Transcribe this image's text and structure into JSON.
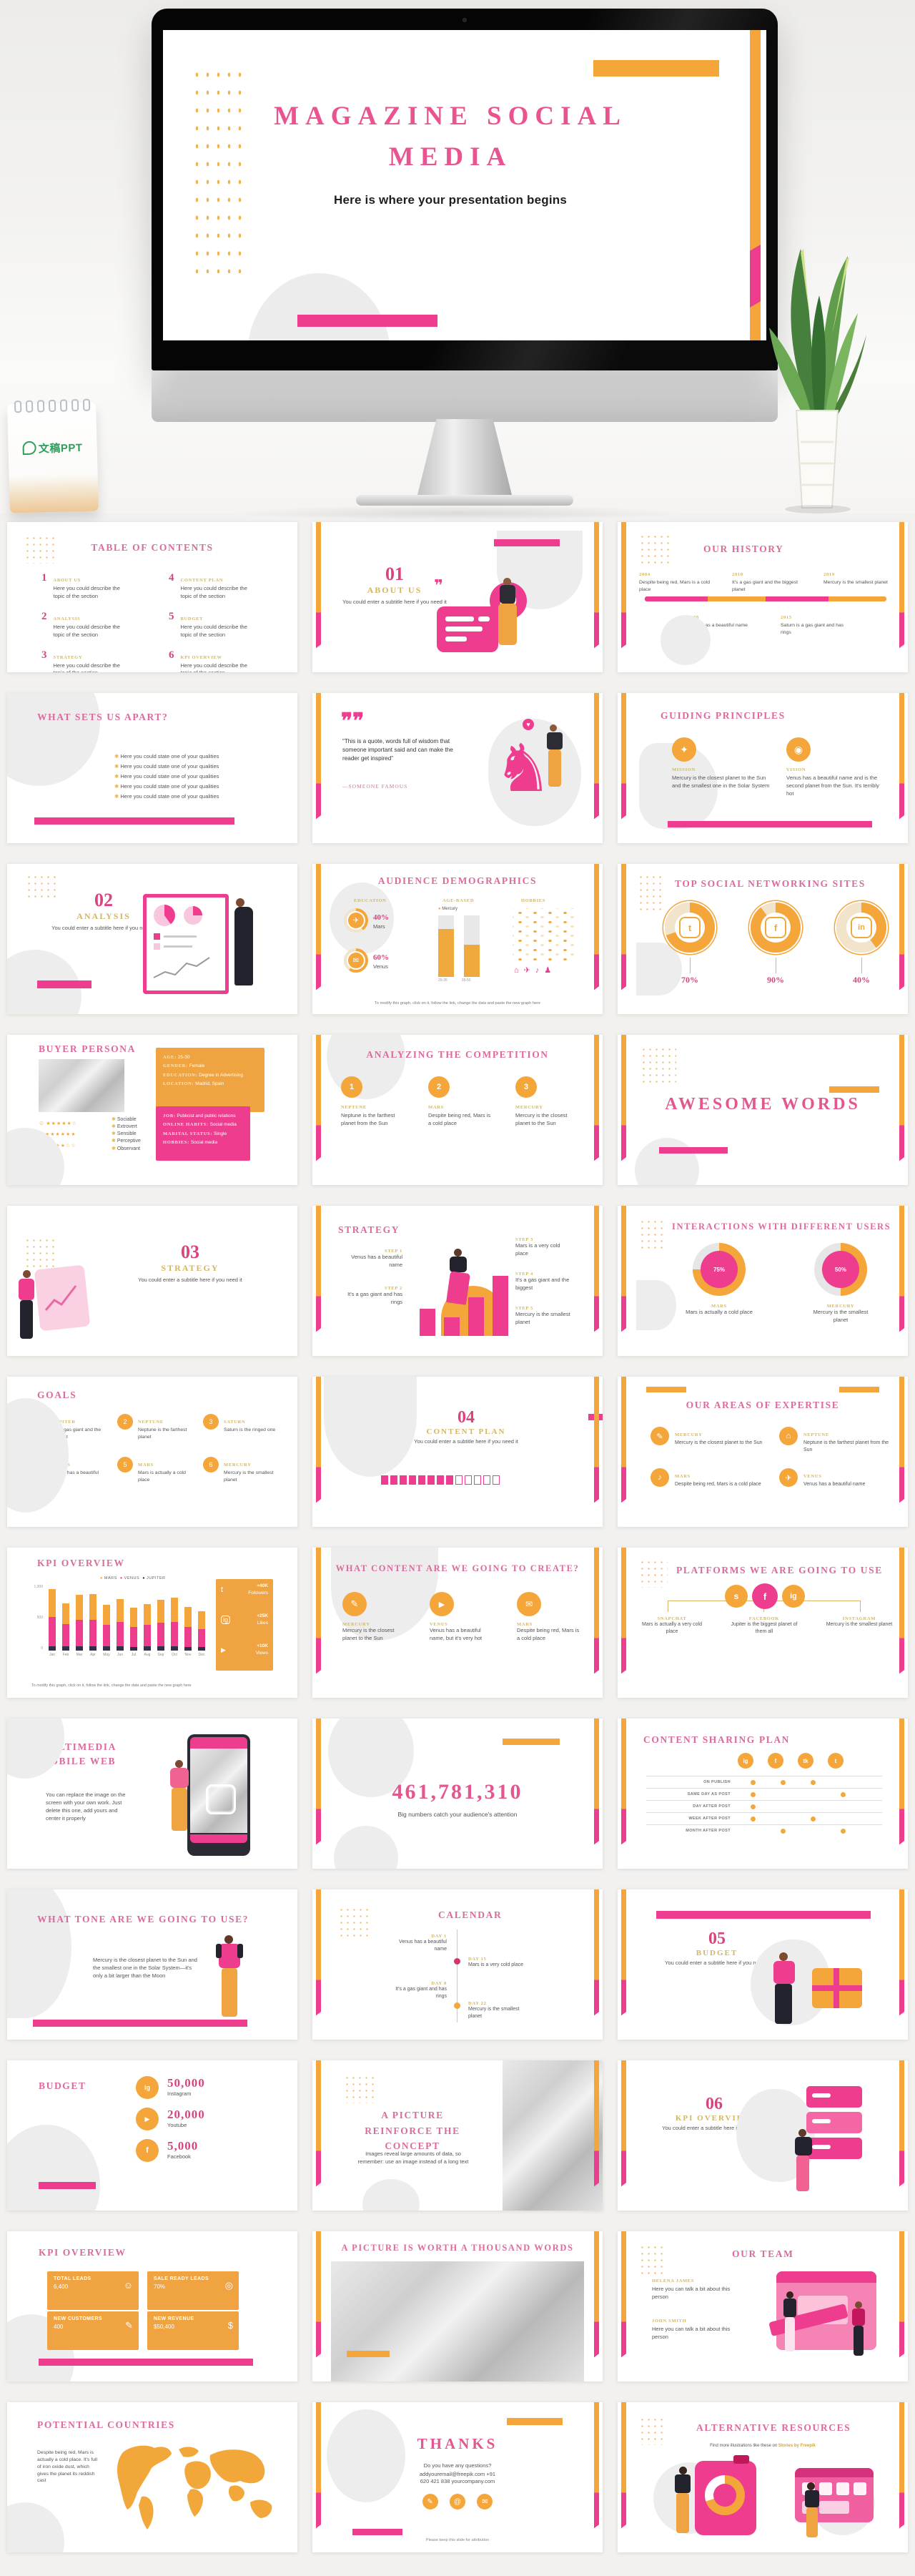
{
  "colors": {
    "pink": "#EE3D8F",
    "orange": "#F4A63A",
    "title_pink": "#DB6A9D",
    "gold": "#D2B660",
    "green_logo": "#2F9E5D"
  },
  "hero": {
    "title_line1": "MAGAZINE SOCIAL",
    "title_line2": "MEDIA",
    "subtitle": "Here is where your presentation begins",
    "calendar_brand": "文稿PPT"
  },
  "slides": {
    "toc": {
      "title": "TABLE OF CONTENTS",
      "desc": "Here you could describe the topic of the section",
      "items": [
        {
          "num": "1",
          "label": "ABOUT US"
        },
        {
          "num": "2",
          "label": "ANALYSIS"
        },
        {
          "num": "3",
          "label": "STRATEGY"
        },
        {
          "num": "4",
          "label": "CONTENT PLAN"
        },
        {
          "num": "5",
          "label": "BUDGET"
        },
        {
          "num": "6",
          "label": "KPI OVERVIEW"
        }
      ]
    },
    "about": {
      "num": "01",
      "title": "ABOUT US",
      "subtitle": "You could enter a subtitle here if you need it"
    },
    "history": {
      "title": "OUR HISTORY",
      "top": [
        {
          "year": "2004",
          "text": "Despite being red, Mars is a cold place"
        },
        {
          "year": "2010",
          "text": "It's a gas giant and the biggest planet"
        },
        {
          "year": "2019",
          "text": "Mercury is the smallest planet"
        }
      ],
      "bottom": [
        {
          "year": "2008",
          "text": "Venus has a beautiful name"
        },
        {
          "year": "2015",
          "text": "Saturn is a gas giant and has rings"
        }
      ]
    },
    "apart": {
      "title": "WHAT SETS US APART?",
      "bullet": "Here you could state one of your qualities"
    },
    "quote": {
      "text": "“This is a quote, words full of wisdom that someone important said and can make the reader get inspired”",
      "author": "—SOMEONE FAMOUS"
    },
    "principles": {
      "title": "GUIDING PRINCIPLES",
      "items": [
        {
          "icon": "compass-icon",
          "label": "MISSION",
          "text": "Mercury is the closest planet to the Sun and the smallest one in the Solar System"
        },
        {
          "icon": "eye-icon",
          "label": "VISION",
          "text": "Venus has a beautiful name and is the second planet from the Sun. It's terribly hot"
        }
      ]
    },
    "analysis": {
      "num": "02",
      "title": "ANALYSIS",
      "subtitle": "You could enter a subtitle here if you need it"
    },
    "demographics": {
      "title": "AUDIENCE DEMOGRAPHICS",
      "education": {
        "label": "EDUCATION",
        "items": [
          {
            "pct": "40%",
            "name": "Mars",
            "value": 40
          },
          {
            "pct": "60%",
            "name": "Venus",
            "value": 60
          }
        ]
      },
      "age": {
        "label": "AGE-BASED",
        "legend": "Mercury",
        "bars": [
          {
            "x": "20-35",
            "v": 78
          },
          {
            "x": "35-50",
            "v": 52
          }
        ]
      },
      "hobbies": {
        "label": "HOBBIES"
      },
      "note": "To modify this graph, click on it, follow the link, change the data and paste the new graph here"
    },
    "topsites": {
      "title": "TOP SOCIAL NETWORKING SITES",
      "items": [
        {
          "icon": "twitter-icon",
          "glyph": "t",
          "pct": "70%",
          "value": 70
        },
        {
          "icon": "facebook-icon",
          "glyph": "f",
          "pct": "90%",
          "value": 90
        },
        {
          "icon": "linkedin-icon",
          "glyph": "in",
          "pct": "40%",
          "value": 40
        }
      ]
    },
    "persona": {
      "title": "BUYER PERSONA",
      "traits": [
        "Sociable",
        "Extrovert",
        "Sensible",
        "Perceptive",
        "Observant"
      ],
      "info": [
        {
          "k": "AGE:",
          "v": "25-30"
        },
        {
          "k": "GENDER:",
          "v": "Female"
        },
        {
          "k": "EDUCATION:",
          "v": "Degree in Advertising"
        },
        {
          "k": "LOCATION:",
          "v": "Madrid, Spain"
        }
      ],
      "details": [
        {
          "k": "JOB:",
          "v": "Publicist and public relations"
        },
        {
          "k": "ONLINE HABITS:",
          "v": "Social media"
        },
        {
          "k": "MARITAL STATUS:",
          "v": "Single"
        },
        {
          "k": "HOBBIES:",
          "v": "Social media"
        }
      ]
    },
    "competition": {
      "title": "ANALYZING THE COMPETITION",
      "items": [
        {
          "num": "1",
          "label": "NEPTUNE",
          "text": "Neptune is the farthest planet from the Sun"
        },
        {
          "num": "2",
          "label": "MARS",
          "text": "Despite being red, Mars is a cold place"
        },
        {
          "num": "3",
          "label": "MERCURY",
          "text": "Mercury is the closest planet to the Sun"
        }
      ]
    },
    "awesome": {
      "title": "AWESOME WORDS"
    },
    "strategy_intro": {
      "num": "03",
      "title": "STRATEGY",
      "subtitle": "You could enter a subtitle here if you need it"
    },
    "strategy": {
      "title": "STRATEGY",
      "steps": [
        {
          "label": "STEP 1",
          "text": "Venus has a beautiful name"
        },
        {
          "label": "STEP 2",
          "text": "It's a gas giant and has rings"
        },
        {
          "label": "STEP 3",
          "text": "Mars is a very cold place"
        },
        {
          "label": "STEP 4",
          "text": "It's a gas giant and the biggest"
        },
        {
          "label": "STEP 5",
          "text": "Mercury is the smallest planet"
        }
      ]
    },
    "interactions": {
      "title": "INTERACTIONS WITH DIFFERENT USERS",
      "items": [
        {
          "pct": "75%",
          "value": 75,
          "label": "MARS",
          "text": "Mars is actually a cold place"
        },
        {
          "pct": "50%",
          "value": 50,
          "label": "MERCURY",
          "text": "Mercury is the smallest planet"
        }
      ]
    },
    "goals": {
      "title": "GOALS",
      "items": [
        {
          "num": "1",
          "label": "JUPITER",
          "text": "It's a gas giant and the biggest"
        },
        {
          "num": "2",
          "label": "NEPTUNE",
          "text": "Neptune is the farthest planet"
        },
        {
          "num": "3",
          "label": "SATURN",
          "text": "Saturn is the ringed one"
        },
        {
          "num": "4",
          "label": "VENUS",
          "text": "Venus has a beautiful name"
        },
        {
          "num": "5",
          "label": "MARS",
          "text": "Mars is actually a cold place"
        },
        {
          "num": "6",
          "label": "MERCURY",
          "text": "Mercury is the smallest planet"
        }
      ]
    },
    "contentplan": {
      "num": "04",
      "title": "CONTENT PLAN",
      "subtitle": "You could enter a subtitle here if you need it",
      "progress": {
        "filled": 8,
        "total": 13
      }
    },
    "expertise": {
      "title": "OUR AREAS OF EXPERTISE",
      "items": [
        {
          "icon": "chart-icon",
          "glyph": "✎",
          "label": "MERCURY",
          "text": "Mercury is the closest planet to the Sun"
        },
        {
          "icon": "bank-icon",
          "glyph": "⌂",
          "label": "NEPTUNE",
          "text": "Neptune is the farthest planet from the Sun"
        },
        {
          "icon": "megaphone-icon",
          "glyph": "♪",
          "label": "MARS",
          "text": "Despite being red, Mars is a cold place"
        },
        {
          "icon": "pen-icon",
          "glyph": "✈",
          "label": "VENUS",
          "text": "Venus has a beautiful name"
        }
      ]
    },
    "kpi_chart": {
      "title": "KPI OVERVIEW",
      "legend": [
        "MARS",
        "VENUS",
        "JUPITER"
      ],
      "months": [
        "Jan",
        "Feb",
        "Mar",
        "Apr",
        "May",
        "Jun",
        "Jul",
        "Aug",
        "Sep",
        "Oct",
        "Nov",
        "Dec"
      ],
      "yticks": [
        "1,000",
        "500",
        "0"
      ],
      "series": {
        "mars": [
          420,
          320,
          380,
          390,
          310,
          350,
          290,
          320,
          350,
          360,
          300,
          270
        ],
        "venus": [
          440,
          340,
          400,
          400,
          330,
          370,
          310,
          330,
          360,
          380,
          310,
          280
        ],
        "jupiter": [
          70,
          60,
          70,
          70,
          60,
          60,
          50,
          60,
          60,
          60,
          50,
          50
        ]
      },
      "stats": [
        {
          "icon": "twitter-icon",
          "glyph": "t",
          "value": "+40K",
          "label": "Followers"
        },
        {
          "icon": "instagram-icon",
          "glyph": "ig",
          "value": "+25K",
          "label": "Likes"
        },
        {
          "icon": "youtube-icon",
          "glyph": "▶",
          "value": "+10K",
          "label": "Views"
        }
      ],
      "note": "To modify this graph, click on it, follow the link, change the data and paste the new graph here"
    },
    "whatcontent": {
      "title": "WHAT CONTENT ARE WE GOING TO CREATE?",
      "items": [
        {
          "icon": "image-icon",
          "glyph": "✎",
          "label": "MERCURY",
          "text": "Mercury is the closest planet to the Sun"
        },
        {
          "icon": "video-icon",
          "glyph": "▶",
          "label": "VENUS",
          "text": "Venus has a beautiful name, but it's very hot"
        },
        {
          "icon": "doc-icon",
          "glyph": "✉",
          "label": "MARS",
          "text": "Despite being red, Mars is a cold place"
        }
      ]
    },
    "platforms": {
      "title": "PLATFORMS WE ARE GOING TO USE",
      "items": [
        {
          "icon": "snapchat-icon",
          "glyph": "s",
          "label": "SNAPCHAT",
          "text": "Mars is actually a very cold place"
        },
        {
          "icon": "facebook-icon",
          "glyph": "f",
          "label": "FACEBOOK",
          "text": "Jupiter is the biggest planet of them all"
        },
        {
          "icon": "instagram-icon",
          "glyph": "ig",
          "label": "INSTAGRAM",
          "text": "Mercury is the smallest planet"
        }
      ]
    },
    "multimedia": {
      "title": "MULTIMEDIA MOBILE WEB",
      "text": "You can replace the image on the screen with your own work. Just delete this one, add yours and center it properly"
    },
    "bignumber": {
      "value": "461,781,310",
      "caption": "Big numbers catch your audience's attention"
    },
    "sharingplan": {
      "title": "CONTENT SHARING PLAN",
      "columns": [
        {
          "icon": "instagram-icon",
          "glyph": "ig"
        },
        {
          "icon": "facebook-icon",
          "glyph": "f"
        },
        {
          "icon": "tiktok-icon",
          "glyph": "tk"
        },
        {
          "icon": "twitter-icon",
          "glyph": "t"
        }
      ],
      "rows": [
        {
          "label": "ON PUBLISH",
          "dots": [
            1,
            1,
            1,
            0
          ]
        },
        {
          "label": "SAME DAY AS POST",
          "dots": [
            1,
            0,
            0,
            1
          ]
        },
        {
          "label": "DAY AFTER POST",
          "dots": [
            1,
            0,
            0,
            0
          ]
        },
        {
          "label": "WEEK AFTER POST",
          "dots": [
            1,
            0,
            1,
            0
          ]
        },
        {
          "label": "MONTH AFTER POST",
          "dots": [
            0,
            1,
            0,
            1
          ]
        }
      ]
    },
    "tone": {
      "title": "WHAT TONE ARE WE GOING TO USE?",
      "text": "Mercury is the closest planet to the Sun and the smallest one in the Solar System—it's only a bit larger than the Moon"
    },
    "calendar": {
      "title": "CALENDAR",
      "items": [
        {
          "label": "DAY 1",
          "text": "Venus has a beautiful name"
        },
        {
          "label": "DAY 8",
          "text": "It's a gas giant and has rings"
        },
        {
          "label": "DAY 15",
          "text": "Mars is a very cold place"
        },
        {
          "label": "DAY 22",
          "text": "Mercury is the smallest planet"
        }
      ]
    },
    "budget_intro": {
      "num": "05",
      "title": "BUDGET",
      "subtitle": "You could enter a subtitle here if you need it"
    },
    "budget": {
      "title": "BUDGET",
      "items": [
        {
          "icon": "instagram-icon",
          "glyph": "ig",
          "value": "50,000",
          "label": "Instagram"
        },
        {
          "icon": "youtube-icon",
          "glyph": "▶",
          "value": "20,000",
          "label": "Youtube"
        },
        {
          "icon": "facebook-icon",
          "glyph": "f",
          "value": "5,000",
          "label": "Facebook"
        }
      ]
    },
    "picture_concept": {
      "title": "A PICTURE REINFORCE THE CONCEPT",
      "text": "Images reveal large amounts of data, so remember: use an image instead of a long text"
    },
    "kpi_intro": {
      "num": "06",
      "title": "KPI OVERVIEW",
      "subtitle": "You could enter a subtitle here if you need it"
    },
    "kpi_boxes": {
      "title": "KPI OVERVIEW",
      "boxes": [
        {
          "icon": "people-icon",
          "glyph": "☺",
          "label": "TOTAL LEADS",
          "value": "6,400"
        },
        {
          "icon": "badge-icon",
          "glyph": "◎",
          "label": "SALE READY LEADS",
          "value": "70%"
        },
        {
          "icon": "contact-icon",
          "glyph": "✎",
          "label": "NEW CUSTOMERS",
          "value": "400"
        },
        {
          "icon": "revenue-icon",
          "glyph": "$",
          "label": "NEW REVENUE",
          "value": "$50,400"
        }
      ]
    },
    "picture_words": {
      "title": "A PICTURE IS WORTH A THOUSAND WORDS"
    },
    "team": {
      "title": "OUR TEAM",
      "members": [
        {
          "name": "HELENA JAMES",
          "text": "Here you can talk a bit about this person"
        },
        {
          "name": "JOHN SMITH",
          "text": "Here you can talk a bit about this person"
        }
      ]
    },
    "countries": {
      "title": "POTENTIAL COUNTRIES",
      "text": "Despite being red, Mars is actually a cold place. It's full of iron oxide dust, which gives the planet its reddish cast"
    },
    "thanks": {
      "title": "THANKS",
      "question": "Do you have any questions?",
      "contact1": "addyouremail@freepik.com  +91",
      "contact2": "620 421 838 yourcompany.com",
      "attribution": "Please keep this slide for attribution"
    },
    "resources": {
      "title": "ALTERNATIVE RESOURCES",
      "text_prefix": "Find more illustrations like these on ",
      "text_link": "Stories by Freepik"
    }
  }
}
